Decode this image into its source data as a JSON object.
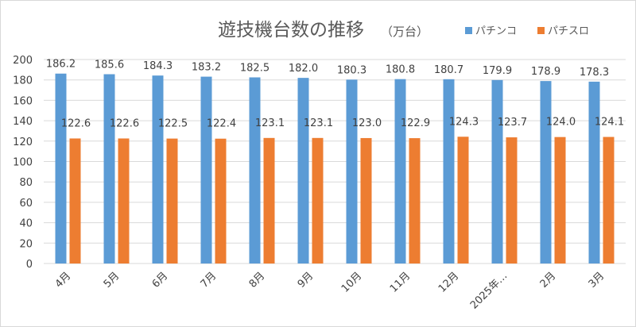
{
  "chart_data": {
    "type": "bar",
    "title": "遊技機台数の推移",
    "unit": "（万台）",
    "categories": [
      "4月",
      "5月",
      "6月",
      "7月",
      "8月",
      "9月",
      "10月",
      "11月",
      "12月",
      "2025年…",
      "2月",
      "3月"
    ],
    "series": [
      {
        "name": "パチンコ",
        "color": "#5b9bd5",
        "values": [
          186.2,
          185.6,
          184.3,
          183.2,
          182.5,
          182.0,
          180.3,
          180.8,
          180.7,
          179.9,
          178.9,
          178.3
        ],
        "value_labels": [
          "186.2",
          "185.6",
          "184.3",
          "183.2",
          "182.5",
          "182.0",
          "180.3",
          "180.8",
          "180.7",
          "179.9",
          "178.9",
          "178.3"
        ]
      },
      {
        "name": "パチスロ",
        "color": "#ed7d31",
        "values": [
          122.6,
          122.6,
          122.5,
          122.4,
          123.1,
          123.1,
          123.0,
          122.9,
          124.3,
          123.7,
          124.0,
          124.1
        ],
        "value_labels": [
          "122.6",
          "122.6",
          "122.5",
          "122.4",
          "123.1",
          "123.1",
          "123.0",
          "122.9",
          "124.3",
          "123.7",
          "124.0",
          "124.1"
        ]
      }
    ],
    "ylim": [
      0,
      200
    ],
    "yticks": [
      "0",
      "20",
      "40",
      "60",
      "80",
      "100",
      "120",
      "140",
      "160",
      "180",
      "200"
    ],
    "grid": true,
    "legend_position": "top-right",
    "xlabel": "",
    "ylabel": ""
  }
}
